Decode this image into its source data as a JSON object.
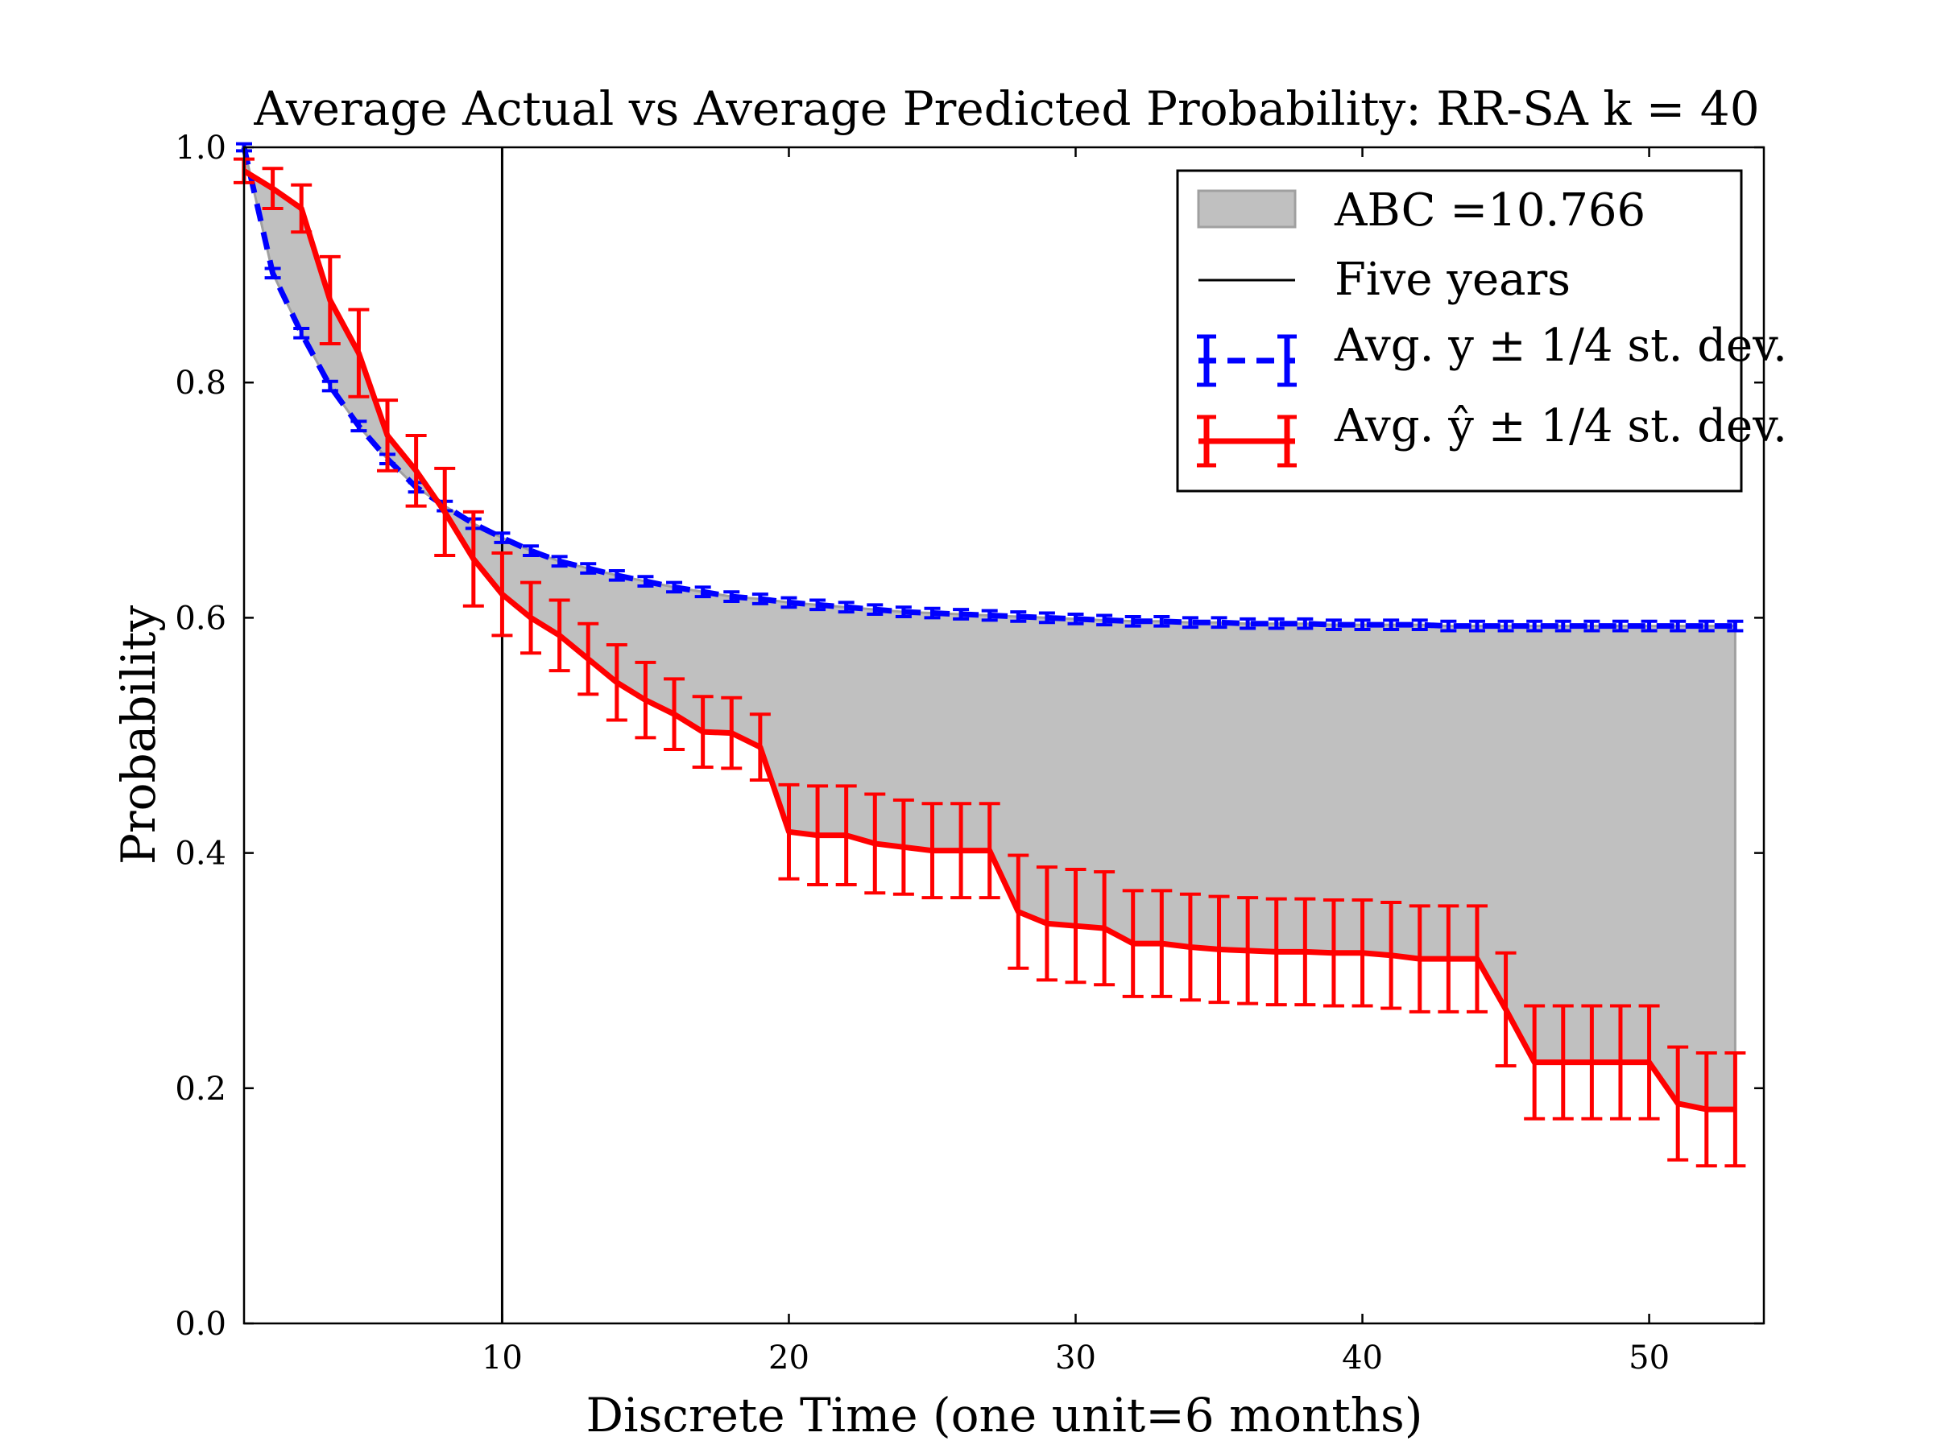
{
  "chart_data": {
    "type": "line",
    "title": "Average Actual vs Average Predicted Probability: RR-SA k = 40",
    "xlabel": "Discrete Time (one unit=6 months)",
    "ylabel": "Probability",
    "xlim": [
      1,
      54
    ],
    "ylim": [
      0,
      1
    ],
    "xticks": [
      10,
      20,
      30,
      40,
      50
    ],
    "yticks": [
      0.0,
      0.2,
      0.4,
      0.6,
      0.8,
      1.0
    ],
    "grid": false,
    "legend_position": "top-right",
    "vline": {
      "x": 10,
      "name": "Five years",
      "color": "#000000"
    },
    "abc": {
      "name": "ABC =10.766",
      "color": "#c0c0c0"
    },
    "x": [
      1,
      2,
      3,
      4,
      5,
      6,
      7,
      8,
      9,
      10,
      11,
      12,
      13,
      14,
      15,
      16,
      17,
      18,
      19,
      20,
      21,
      22,
      23,
      24,
      25,
      26,
      27,
      28,
      29,
      30,
      31,
      32,
      33,
      34,
      35,
      36,
      37,
      38,
      39,
      40,
      41,
      42,
      43,
      44,
      45,
      46,
      47,
      48,
      49,
      50,
      51,
      52,
      53
    ],
    "series": [
      {
        "name": "Avg. y ± 1/4 st. dev.",
        "color": "#0000ff",
        "style": "dashed",
        "values": [
          1.0,
          0.893,
          0.842,
          0.797,
          0.763,
          0.735,
          0.711,
          0.695,
          0.68,
          0.668,
          0.657,
          0.648,
          0.642,
          0.636,
          0.631,
          0.626,
          0.622,
          0.618,
          0.616,
          0.613,
          0.611,
          0.609,
          0.607,
          0.605,
          0.604,
          0.603,
          0.602,
          0.601,
          0.6,
          0.599,
          0.598,
          0.597,
          0.597,
          0.596,
          0.596,
          0.595,
          0.595,
          0.595,
          0.594,
          0.594,
          0.594,
          0.594,
          0.593,
          0.593,
          0.593,
          0.593,
          0.593,
          0.593,
          0.593,
          0.593,
          0.593,
          0.593,
          0.593
        ],
        "err": [
          0.003,
          0.004,
          0.004,
          0.004,
          0.004,
          0.004,
          0.004,
          0.004,
          0.004,
          0.004,
          0.004,
          0.004,
          0.004,
          0.004,
          0.004,
          0.004,
          0.004,
          0.004,
          0.004,
          0.004,
          0.004,
          0.004,
          0.004,
          0.004,
          0.004,
          0.004,
          0.004,
          0.004,
          0.004,
          0.004,
          0.004,
          0.004,
          0.004,
          0.004,
          0.004,
          0.004,
          0.004,
          0.004,
          0.004,
          0.004,
          0.004,
          0.004,
          0.004,
          0.004,
          0.004,
          0.004,
          0.004,
          0.004,
          0.004,
          0.004,
          0.004,
          0.004,
          0.004
        ]
      },
      {
        "name": "Avg. ŷ ± 1/4 st. dev.",
        "color": "#ff0000",
        "style": "solid",
        "values": [
          0.98,
          0.965,
          0.948,
          0.87,
          0.825,
          0.755,
          0.725,
          0.69,
          0.65,
          0.62,
          0.6,
          0.585,
          0.565,
          0.545,
          0.53,
          0.518,
          0.503,
          0.502,
          0.49,
          0.418,
          0.415,
          0.415,
          0.408,
          0.405,
          0.402,
          0.402,
          0.402,
          0.35,
          0.34,
          0.338,
          0.336,
          0.323,
          0.323,
          0.32,
          0.318,
          0.317,
          0.316,
          0.316,
          0.315,
          0.315,
          0.313,
          0.31,
          0.31,
          0.31,
          0.267,
          0.222,
          0.222,
          0.222,
          0.222,
          0.222,
          0.187,
          0.182,
          0.182
        ],
        "err": [
          0.01,
          0.017,
          0.02,
          0.037,
          0.037,
          0.03,
          0.03,
          0.037,
          0.04,
          0.035,
          0.03,
          0.03,
          0.03,
          0.032,
          0.032,
          0.03,
          0.03,
          0.03,
          0.028,
          0.04,
          0.042,
          0.042,
          0.042,
          0.04,
          0.04,
          0.04,
          0.04,
          0.048,
          0.048,
          0.048,
          0.048,
          0.045,
          0.045,
          0.045,
          0.045,
          0.045,
          0.045,
          0.045,
          0.045,
          0.045,
          0.045,
          0.045,
          0.045,
          0.045,
          0.048,
          0.048,
          0.048,
          0.048,
          0.048,
          0.048,
          0.048,
          0.048,
          0.048
        ]
      }
    ]
  }
}
